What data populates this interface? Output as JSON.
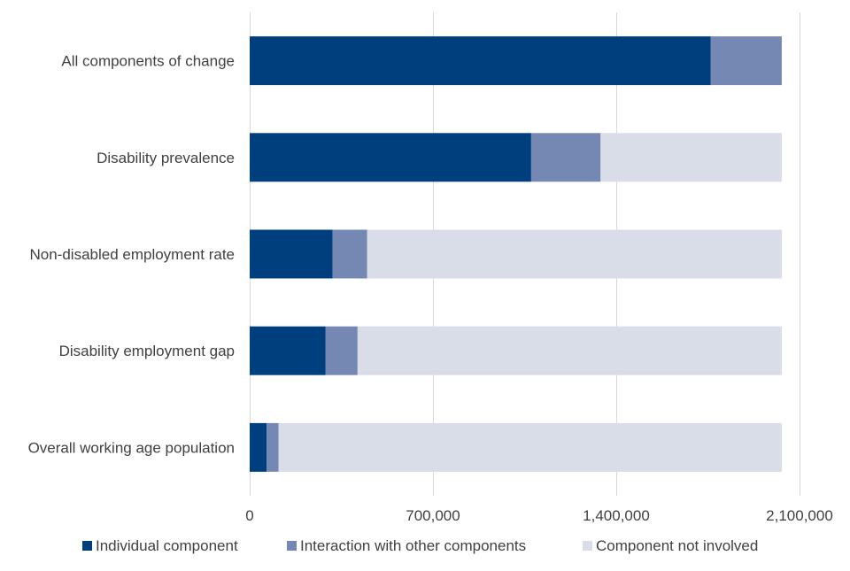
{
  "chart_data": {
    "type": "bar",
    "orientation": "horizontal",
    "stacked": true,
    "title": "",
    "xlabel": "",
    "ylabel": "",
    "xlim": [
      0,
      2100000
    ],
    "x_ticks": [
      0,
      700000,
      1400000,
      2100000
    ],
    "x_tick_labels": [
      "0",
      "700,000",
      "1,400,000",
      "2,100,000"
    ],
    "grid": "vertical",
    "legend_position": "bottom",
    "categories": [
      "All components of change",
      "Disability prevalence",
      "Non-disabled employment rate",
      "Disability employment gap",
      "Overall working age population"
    ],
    "series": [
      {
        "name": "Individual component",
        "color": "#003f7d",
        "values": [
          1760000,
          1075000,
          317000,
          290000,
          65000
        ]
      },
      {
        "name": "Interaction with other components",
        "color": "#7488b3",
        "values": [
          272000,
          265000,
          132000,
          122000,
          45000
        ]
      },
      {
        "name": "Component not involved",
        "color": "#d9dde8",
        "values": [
          0,
          692000,
          1583000,
          1620000,
          1922000
        ]
      }
    ]
  }
}
